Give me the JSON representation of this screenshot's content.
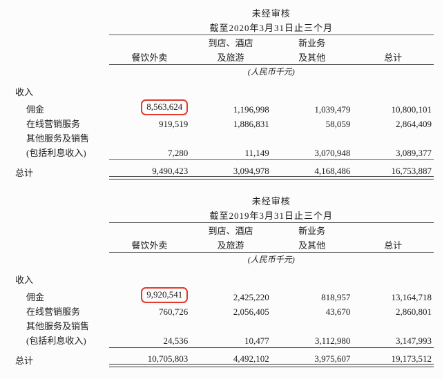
{
  "tables": [
    {
      "super_header_line1": "未经审核",
      "super_header_line2": "截至2020年3月31日止三个月",
      "col_headers": {
        "c1": "餐饮外卖",
        "c2_line1": "到店、酒店",
        "c2_line2": "及旅游",
        "c3_line1": "新业务",
        "c3_line2": "及其他",
        "c4": "总计"
      },
      "unit": "(人民币千元)",
      "section_label": "收入",
      "rows": [
        {
          "label": "佣金",
          "c1": "8,563,624",
          "c1_circled": true,
          "c2": "1,196,998",
          "c3": "1,039,479",
          "c4": "10,800,101"
        },
        {
          "label": "在线营销服务",
          "c1": "919,519",
          "c1_circled": false,
          "c2": "1,886,831",
          "c3": "58,059",
          "c4": "2,864,409"
        },
        {
          "label": "其他服务及销售",
          "note": "(包括利息收入)",
          "c1": "7,280",
          "c1_circled": false,
          "c2": "11,149",
          "c3": "3,070,948",
          "c4": "3,089,377"
        }
      ],
      "total_label": "总计",
      "totals": {
        "c1": "9,490,423",
        "c2": "3,094,978",
        "c3": "4,168,486",
        "c4": "16,753,887"
      }
    },
    {
      "super_header_line1": "未经审核",
      "super_header_line2": "截至2019年3月31日止三个月",
      "col_headers": {
        "c1": "餐饮外卖",
        "c2_line1": "到店、酒店",
        "c2_line2": "及旅游",
        "c3_line1": "新业务",
        "c3_line2": "及其他",
        "c4": "总计"
      },
      "unit": "(人民币千元)",
      "section_label": "收入",
      "rows": [
        {
          "label": "佣金",
          "c1": "9,920,541",
          "c1_circled": true,
          "c2": "2,425,220",
          "c3": "818,957",
          "c4": "13,164,718"
        },
        {
          "label": "在线营销服务",
          "c1": "760,726",
          "c1_circled": false,
          "c2": "2,056,405",
          "c3": "43,670",
          "c4": "2,860,801"
        },
        {
          "label": "其他服务及销售",
          "note": "(包括利息收入)",
          "c1": "24,536",
          "c1_circled": false,
          "c2": "10,477",
          "c3": "3,112,980",
          "c4": "3,147,993"
        }
      ],
      "total_label": "总计",
      "totals": {
        "c1": "10,705,803",
        "c2": "4,492,102",
        "c3": "3,975,607",
        "c4": "19,173,512"
      }
    }
  ]
}
